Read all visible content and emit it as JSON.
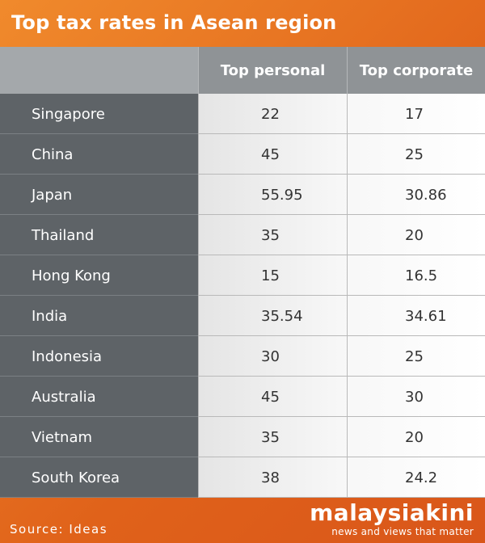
{
  "chart_data": {
    "type": "table",
    "title": "Top tax rates in Asean region",
    "columns": [
      "",
      "Top personal",
      "Top corporate"
    ],
    "rows": [
      {
        "country": "Singapore",
        "personal": "22",
        "corporate": "17"
      },
      {
        "country": "China",
        "personal": "45",
        "corporate": "25"
      },
      {
        "country": "Japan",
        "personal": "55.95",
        "corporate": "30.86"
      },
      {
        "country": "Thailand",
        "personal": "35",
        "corporate": "20"
      },
      {
        "country": "Hong Kong",
        "personal": "15",
        "corporate": "16.5"
      },
      {
        "country": "India",
        "personal": "35.54",
        "corporate": "34.61"
      },
      {
        "country": "Indonesia",
        "personal": "30",
        "corporate": "25"
      },
      {
        "country": "Australia",
        "personal": "45",
        "corporate": "30"
      },
      {
        "country": "Vietnam",
        "personal": "35",
        "corporate": "20"
      },
      {
        "country": "South Korea",
        "personal": "38",
        "corporate": "24.2"
      }
    ]
  },
  "footer": {
    "source": "Source: Ideas",
    "brand_name": "malaysiakini",
    "brand_tagline": "news and views that matter"
  },
  "colors": {
    "accent": "#e86a1e",
    "country_column": "#5e6367",
    "header": "#8f9396"
  }
}
